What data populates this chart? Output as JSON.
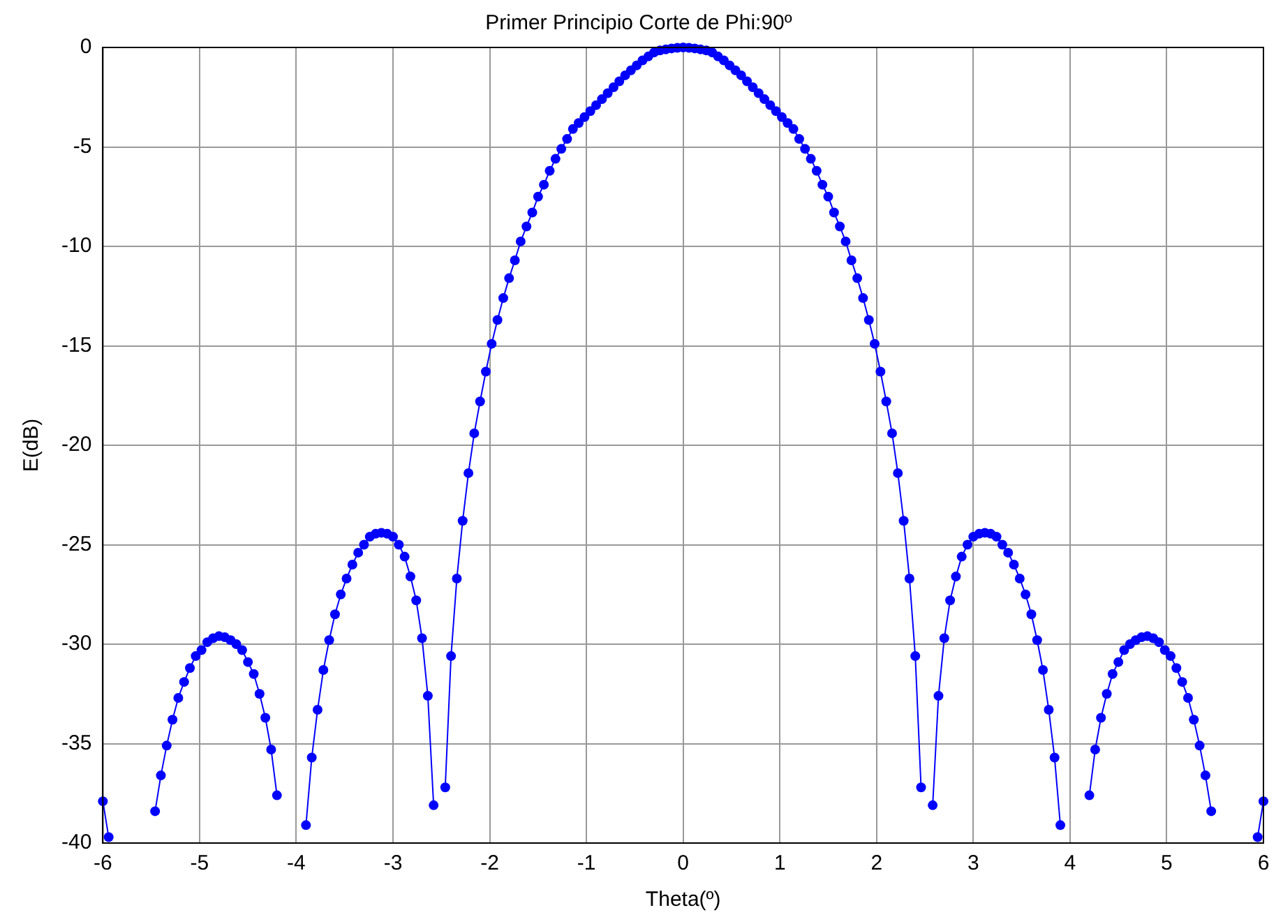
{
  "chart_data": {
    "type": "line",
    "title": "Primer Principio Corte de Phi:90º",
    "xlabel": "Theta(º)",
    "ylabel": "E(dB)",
    "x": [
      -6,
      -5.94,
      -5.88,
      -5.82,
      -5.76,
      -5.7,
      -5.64,
      -5.58,
      -5.52,
      -5.46,
      -5.4,
      -5.34,
      -5.28,
      -5.22,
      -5.16,
      -5.1,
      -5.04,
      -4.98,
      -4.92,
      -4.86,
      -4.8,
      -4.74,
      -4.68,
      -4.62,
      -4.56,
      -4.5,
      -4.44,
      -4.38,
      -4.32,
      -4.26,
      -4.2,
      -4.14,
      -4.08,
      -4.02,
      -3.96,
      -3.9,
      -3.84,
      -3.78,
      -3.72,
      -3.66,
      -3.6,
      -3.54,
      -3.48,
      -3.42,
      -3.36,
      -3.3,
      -3.24,
      -3.18,
      -3.12,
      -3.06,
      -3,
      -2.94,
      -2.88,
      -2.82,
      -2.76,
      -2.7,
      -2.64,
      -2.58,
      -2.52,
      -2.46,
      -2.4,
      -2.34,
      -2.28,
      -2.22,
      -2.16,
      -2.1,
      -2.04,
      -1.98,
      -1.92,
      -1.86,
      -1.8,
      -1.74,
      -1.68,
      -1.62,
      -1.56,
      -1.5,
      -1.44,
      -1.38,
      -1.32,
      -1.26,
      -1.2,
      -1.14,
      -1.08,
      -1.02,
      -0.96,
      -0.9,
      -0.84,
      -0.78,
      -0.72,
      -0.66,
      -0.6,
      -0.54,
      -0.48,
      -0.42,
      -0.36,
      -0.3,
      -0.24,
      -0.18,
      -0.12,
      -0.06,
      0,
      0.06,
      0.12,
      0.18,
      0.24,
      0.3,
      0.36,
      0.42,
      0.48,
      0.54,
      0.6,
      0.66,
      0.72,
      0.78,
      0.84,
      0.9,
      0.96,
      1.02,
      1.08,
      1.14,
      1.2,
      1.26,
      1.32,
      1.38,
      1.44,
      1.5,
      1.56,
      1.62,
      1.68,
      1.74,
      1.8,
      1.86,
      1.92,
      1.98,
      2.04,
      2.1,
      2.16,
      2.22,
      2.28,
      2.34,
      2.4,
      2.46,
      2.52,
      2.58,
      2.64,
      2.7,
      2.76,
      2.82,
      2.88,
      2.94,
      3,
      3.06,
      3.12,
      3.18,
      3.24,
      3.3,
      3.36,
      3.42,
      3.48,
      3.54,
      3.6,
      3.66,
      3.72,
      3.78,
      3.84,
      3.9,
      3.96,
      4.02,
      4.08,
      4.14,
      4.2,
      4.26,
      4.32,
      4.38,
      4.44,
      4.5,
      4.56,
      4.62,
      4.68,
      4.74,
      4.8,
      4.86,
      4.92,
      4.98,
      5.04,
      5.1,
      5.16,
      5.22,
      5.28,
      5.34,
      5.4,
      5.46,
      5.52,
      5.58,
      5.64,
      5.7,
      5.76,
      5.82,
      5.88,
      5.94,
      6
    ],
    "series": [
      {
        "color": "#0000ff",
        "values": [
          -37.9,
          -39.7,
          null,
          null,
          null,
          null,
          null,
          null,
          null,
          -38.4,
          -36.6,
          -35.1,
          -33.8,
          -32.7,
          -31.9,
          -31.2,
          -30.6,
          -30.3,
          -29.9,
          -29.7,
          -29.6,
          -29.65,
          -29.8,
          -30.0,
          -30.3,
          -30.9,
          -31.5,
          -32.5,
          -33.7,
          -35.3,
          -37.6,
          null,
          null,
          null,
          null,
          -39.1,
          -35.7,
          -33.3,
          -31.3,
          -29.8,
          -28.5,
          -27.5,
          -26.7,
          -26.0,
          -25.4,
          -25.0,
          -24.6,
          -24.45,
          -24.4,
          -24.45,
          -24.6,
          -25.0,
          -25.6,
          -26.6,
          -27.8,
          -29.7,
          -32.6,
          -38.1,
          null,
          -37.2,
          -30.6,
          -26.7,
          -23.8,
          -21.4,
          -19.4,
          -17.8,
          -16.3,
          -14.9,
          -13.7,
          -12.6,
          -11.6,
          -10.7,
          -9.75,
          -9,
          -8.3,
          -7.5,
          -6.9,
          -6.2,
          -5.6,
          -5.1,
          -4.6,
          -4.1,
          -3.8,
          -3.5,
          -3.2,
          -2.9,
          -2.6,
          -2.3,
          -2,
          -1.7,
          -1.4,
          -1.15,
          -0.9,
          -0.65,
          -0.45,
          -0.25,
          -0.15,
          -0.1,
          -0.05,
          -0.02,
          0,
          -0.02,
          -0.05,
          -0.1,
          -0.15,
          -0.25,
          -0.45,
          -0.65,
          -0.9,
          -1.15,
          -1.4,
          -1.7,
          -2,
          -2.3,
          -2.6,
          -2.9,
          -3.2,
          -3.5,
          -3.8,
          -4.1,
          -4.6,
          -5.1,
          -5.6,
          -6.2,
          -6.9,
          -7.5,
          -8.3,
          -9,
          -9.75,
          -10.7,
          -11.6,
          -12.6,
          -13.7,
          -14.9,
          -16.3,
          -17.8,
          -19.4,
          -21.4,
          -23.8,
          -26.7,
          -30.6,
          -37.2,
          null,
          -38.1,
          -32.6,
          -29.7,
          -27.8,
          -26.6,
          -25.6,
          -25.0,
          -24.6,
          -24.45,
          -24.4,
          -24.45,
          -24.6,
          -25.0,
          -25.4,
          -26.0,
          -26.7,
          -27.5,
          -28.5,
          -29.8,
          -31.3,
          -33.3,
          -35.7,
          -39.1,
          null,
          null,
          null,
          null,
          -37.6,
          -35.3,
          -33.7,
          -32.5,
          -31.5,
          -30.9,
          -30.3,
          -30.0,
          -29.8,
          -29.65,
          -29.6,
          -29.7,
          -29.9,
          -30.3,
          -30.6,
          -31.2,
          -31.9,
          -32.7,
          -33.8,
          -35.1,
          -36.6,
          -38.4,
          null,
          null,
          null,
          null,
          null,
          null,
          null,
          -39.7,
          -37.9
        ]
      }
    ],
    "xlim": [
      -6,
      6
    ],
    "xticks": [
      -6,
      -5,
      -4,
      -3,
      -2,
      -1,
      0,
      1,
      2,
      3,
      4,
      5,
      6
    ],
    "ylim": [
      -40,
      0
    ],
    "yticks": [
      -40,
      -35,
      -30,
      -25,
      -20,
      -15,
      -10,
      -5,
      0
    ],
    "grid": true,
    "marker": "circle",
    "line_style": "solid",
    "legend": false
  }
}
